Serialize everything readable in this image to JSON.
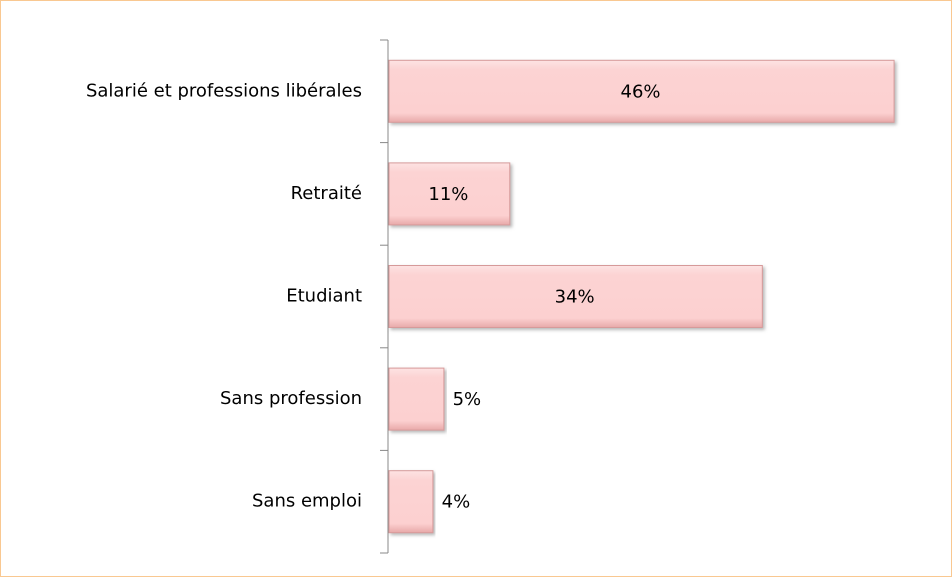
{
  "chart_data": {
    "type": "bar",
    "orientation": "horizontal",
    "categories": [
      "Salarié et professions libérales",
      "Retraité",
      "Etudiant",
      "Sans profession",
      "Sans emploi"
    ],
    "values": [
      46,
      11,
      34,
      5,
      4
    ],
    "value_labels": [
      "46%",
      "11%",
      "34%",
      "5%",
      "4%"
    ],
    "color": "#fcd3d3"
  }
}
